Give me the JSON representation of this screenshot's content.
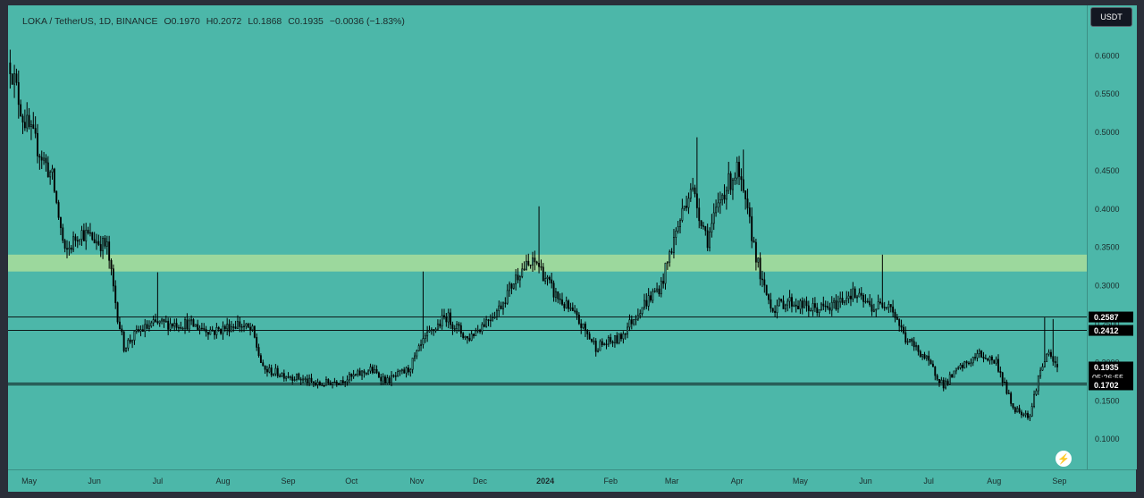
{
  "legend": {
    "symbol": "LOKA / TetherUS, 1D, BINANCE",
    "open": "O0.1970",
    "high": "H0.2072",
    "low": "L0.1868",
    "close": "C0.1935",
    "change": "−0.0036 (−1.83%)"
  },
  "currency_button": "USDT",
  "flash_icon": "lightning-icon",
  "colors": {
    "background": "#4cb7a9",
    "zone": "#b7e39a",
    "candle": "#000000",
    "price_tag": "#000000"
  },
  "chart_data": {
    "type": "candlestick",
    "title": "",
    "y_ticks": [
      "0.6000",
      "0.5500",
      "0.5000",
      "0.4500",
      "0.4000",
      "0.3500",
      "0.3000",
      "0.2500",
      "0.2000",
      "0.1500",
      "0.1000"
    ],
    "x_ticks": [
      "May",
      "Jun",
      "Jul",
      "Aug",
      "Sep",
      "Oct",
      "Nov",
      "Dec",
      "2024",
      "Feb",
      "Mar",
      "Apr",
      "May",
      "Jun",
      "Jul",
      "Aug",
      "Sep"
    ],
    "ylim": [
      0.06,
      0.665
    ],
    "x_range": [
      "2023-04-21",
      "2024-09-14"
    ],
    "series": [
      {
        "price_path": [
          [
            "2023-04-22",
            0.59
          ],
          [
            "2023-04-28",
            0.52
          ],
          [
            "2023-05-05",
            0.48
          ],
          [
            "2023-05-12",
            0.44
          ],
          [
            "2023-05-18",
            0.34
          ],
          [
            "2023-05-25",
            0.37
          ],
          [
            "2023-06-01",
            0.36
          ],
          [
            "2023-06-07",
            0.35
          ],
          [
            "2023-06-12",
            0.26
          ],
          [
            "2023-06-15",
            0.22
          ],
          [
            "2023-06-22",
            0.24
          ],
          [
            "2023-06-30",
            0.25
          ],
          [
            "2023-07-15",
            0.25
          ],
          [
            "2023-07-28",
            0.24
          ],
          [
            "2023-08-08",
            0.25
          ],
          [
            "2023-08-15",
            0.24
          ],
          [
            "2023-08-20",
            0.19
          ],
          [
            "2023-09-05",
            0.18
          ],
          [
            "2023-09-15",
            0.17
          ],
          [
            "2023-10-01",
            0.18
          ],
          [
            "2023-10-10",
            0.19
          ],
          [
            "2023-10-18",
            0.175
          ],
          [
            "2023-10-28",
            0.19
          ],
          [
            "2023-11-05",
            0.23
          ],
          [
            "2023-11-15",
            0.26
          ],
          [
            "2023-11-25",
            0.23
          ],
          [
            "2023-12-10",
            0.27
          ],
          [
            "2023-12-20",
            0.32
          ],
          [
            "2023-12-28",
            0.33
          ],
          [
            "2024-01-05",
            0.29
          ],
          [
            "2024-01-15",
            0.26
          ],
          [
            "2024-01-25",
            0.22
          ],
          [
            "2024-02-05",
            0.23
          ],
          [
            "2024-02-15",
            0.27
          ],
          [
            "2024-02-25",
            0.3
          ],
          [
            "2024-03-02",
            0.36
          ],
          [
            "2024-03-10",
            0.43
          ],
          [
            "2024-03-18",
            0.36
          ],
          [
            "2024-03-25",
            0.42
          ],
          [
            "2024-04-01",
            0.45
          ],
          [
            "2024-04-07",
            0.38
          ],
          [
            "2024-04-13",
            0.3
          ],
          [
            "2024-04-18",
            0.27
          ],
          [
            "2024-04-25",
            0.28
          ],
          [
            "2024-05-05",
            0.27
          ],
          [
            "2024-05-15",
            0.27
          ],
          [
            "2024-05-25",
            0.29
          ],
          [
            "2024-06-05",
            0.27
          ],
          [
            "2024-06-12",
            0.28
          ],
          [
            "2024-06-20",
            0.23
          ],
          [
            "2024-06-28",
            0.21
          ],
          [
            "2024-07-08",
            0.17
          ],
          [
            "2024-07-15",
            0.19
          ],
          [
            "2024-07-25",
            0.21
          ],
          [
            "2024-08-02",
            0.2
          ],
          [
            "2024-08-10",
            0.14
          ],
          [
            "2024-08-18",
            0.13
          ],
          [
            "2024-08-22",
            0.18
          ],
          [
            "2024-08-26",
            0.21
          ],
          [
            "2024-08-31",
            0.1935
          ]
        ],
        "wicks": [
          [
            "2023-07-01",
            0.317
          ],
          [
            "2023-11-04",
            0.318
          ],
          [
            "2023-12-29",
            0.403
          ],
          [
            "2024-03-13",
            0.493
          ],
          [
            "2024-04-04",
            0.477
          ],
          [
            "2024-06-09",
            0.34
          ],
          [
            "2024-08-25",
            0.258
          ],
          [
            "2024-08-29",
            0.256
          ]
        ]
      }
    ],
    "horizontal_lines": [
      0.2587,
      0.2412,
      0.1725,
      0.1702
    ],
    "zone": [
      0.318,
      0.34
    ],
    "price_labels": [
      {
        "value": 0.2587,
        "label": "0.2587"
      },
      {
        "value": 0.2412,
        "label": "0.2412"
      },
      {
        "value": 0.1935,
        "label": "0.1935",
        "countdown": "05:26:55"
      },
      {
        "value": 0.1725,
        "label": "0.1725"
      },
      {
        "value": 0.1702,
        "label": "0.1702"
      }
    ]
  }
}
